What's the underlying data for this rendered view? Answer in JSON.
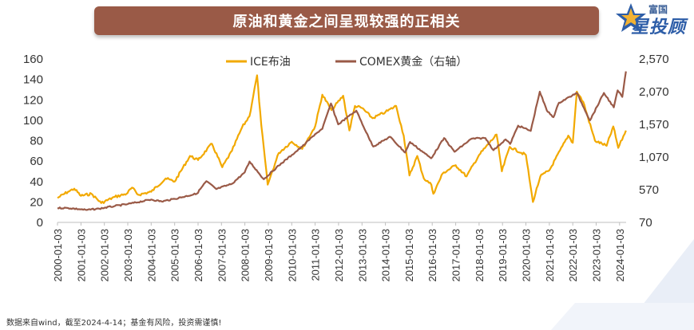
{
  "header": {
    "title": "原油和黄金之间呈现较强的正相关"
  },
  "logo": {
    "top_text": "富国",
    "main_text": "星投顾"
  },
  "footnote": "数据来自wind，截至2024-4-14；基金有风险，投资需谨慎!",
  "colors": {
    "oil": "#f2a900",
    "gold": "#9a5a47",
    "banner": "#9a5a47"
  },
  "chart_data": {
    "type": "line",
    "title": "原油和黄金之间呈现较强的正相关",
    "left_axis": {
      "ylim": [
        0,
        160
      ],
      "ticks": [
        "0",
        "20",
        "40",
        "60",
        "80",
        "100",
        "120",
        "140",
        "160"
      ]
    },
    "right_axis": {
      "ylim": [
        70,
        2570
      ],
      "ticks": [
        "70",
        "570",
        "1,070",
        "1,570",
        "2,070",
        "2,570"
      ]
    },
    "x_ticks": [
      "2000-01-03",
      "2001-01-03",
      "2002-01-03",
      "2003-01-03",
      "2004-01-03",
      "2005-01-03",
      "2006-01-03",
      "2007-01-03",
      "2008-01-03",
      "2009-01-03",
      "2010-01-03",
      "2011-01-03",
      "2012-01-03",
      "2013-01-03",
      "2014-01-03",
      "2015-01-03",
      "2016-01-03",
      "2017-01-03",
      "2018-01-03",
      "2019-01-03",
      "2020-01-03",
      "2021-01-03",
      "2022-01-03",
      "2023-01-03",
      "2024-01-03"
    ],
    "x_range": [
      "2000-01-03",
      "2024-04-14"
    ],
    "legend_position": "top",
    "grid": false,
    "series": [
      {
        "name": "ICE布油",
        "axis": "left",
        "x": [
          "2000-01-03",
          "2000-06-15",
          "2000-09-20",
          "2001-01-03",
          "2001-06-15",
          "2001-11-15",
          "2002-06-15",
          "2002-12-15",
          "2003-03-10",
          "2003-06-15",
          "2004-01-03",
          "2004-08-15",
          "2005-01-03",
          "2005-08-30",
          "2006-01-03",
          "2006-08-07",
          "2007-01-15",
          "2007-06-15",
          "2007-11-20",
          "2008-03-15",
          "2008-07-11",
          "2008-09-15",
          "2008-12-24",
          "2009-06-15",
          "2010-01-03",
          "2010-06-15",
          "2011-01-03",
          "2011-04-25",
          "2011-09-15",
          "2012-03-15",
          "2012-06-20",
          "2012-09-15",
          "2013-01-03",
          "2013-06-15",
          "2014-01-03",
          "2014-06-19",
          "2014-10-15",
          "2015-01-13",
          "2015-05-15",
          "2015-08-25",
          "2015-12-20",
          "2016-01-20",
          "2016-06-15",
          "2017-01-03",
          "2017-06-21",
          "2018-01-03",
          "2018-10-03",
          "2018-12-24",
          "2019-04-25",
          "2020-01-03",
          "2020-04-21",
          "2020-08-15",
          "2021-01-03",
          "2021-10-25",
          "2022-01-03",
          "2022-03-08",
          "2022-06-15",
          "2022-12-15",
          "2023-06-15",
          "2023-09-27",
          "2023-12-13",
          "2024-04-12"
        ],
        "values": [
          24,
          30,
          33,
          26,
          28,
          19,
          25,
          28,
          34,
          27,
          30,
          43,
          40,
          65,
          61,
          77,
          54,
          70,
          93,
          104,
          144,
          95,
          37,
          68,
          79,
          72,
          94,
          125,
          110,
          124,
          90,
          114,
          112,
          102,
          108,
          114,
          85,
          46,
          65,
          43,
          37,
          28,
          48,
          56,
          45,
          66,
          86,
          50,
          74,
          66,
          20,
          45,
          51,
          85,
          78,
          128,
          118,
          80,
          75,
          94,
          73,
          90
        ]
      },
      {
        "name": "COMEX黄金（右轴）",
        "axis": "right",
        "x": [
          "2000-01-03",
          "2000-06-15",
          "2001-01-03",
          "2001-04-02",
          "2001-10-15",
          "2002-06-15",
          "2003-01-03",
          "2004-01-03",
          "2004-06-15",
          "2005-01-03",
          "2005-12-15",
          "2006-05-12",
          "2006-10-15",
          "2007-06-15",
          "2007-12-31",
          "2008-03-17",
          "2008-10-24",
          "2009-06-15",
          "2010-01-03",
          "2010-06-15",
          "2011-01-03",
          "2011-04-25",
          "2011-09-06",
          "2011-12-29",
          "2012-10-05",
          "2013-04-16",
          "2013-06-28",
          "2014-03-15",
          "2014-11-07",
          "2015-01-22",
          "2015-12-17",
          "2016-07-06",
          "2016-12-15",
          "2017-09-08",
          "2018-04-11",
          "2018-08-16",
          "2019-02-20",
          "2019-05-02",
          "2019-09-04",
          "2020-03-19",
          "2020-08-06",
          "2020-11-25",
          "2021-03-08",
          "2021-06-01",
          "2022-03-08",
          "2022-09-28",
          "2023-05-04",
          "2023-10-05",
          "2023-12-04",
          "2024-02-14",
          "2024-04-12"
        ],
        "values": [
          290,
          290,
          270,
          260,
          280,
          320,
          350,
          420,
          390,
          430,
          510,
          700,
          580,
          660,
          835,
          1000,
          730,
          940,
          1100,
          1230,
          1420,
          1500,
          1890,
          1570,
          1780,
          1370,
          1230,
          1380,
          1140,
          1300,
          1050,
          1360,
          1150,
          1350,
          1360,
          1175,
          1340,
          1270,
          1550,
          1470,
          2070,
          1780,
          1680,
          1900,
          2050,
          1630,
          2050,
          1830,
          2090,
          1990,
          2380
        ]
      }
    ]
  }
}
